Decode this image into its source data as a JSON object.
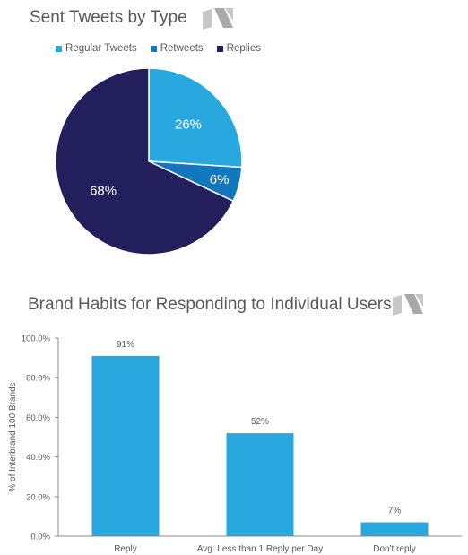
{
  "chart_data": [
    {
      "type": "pie",
      "title": "Sent Tweets by Type",
      "legend_position": "top",
      "slices": [
        {
          "name": "Regular Tweets",
          "value": 26,
          "label": "26%",
          "color": "#29a8e0"
        },
        {
          "name": "Retweets",
          "value": 6,
          "label": "6%",
          "color": "#1377be"
        },
        {
          "name": "Replies",
          "value": 68,
          "label": "68%",
          "color": "#231f5c"
        }
      ]
    },
    {
      "type": "bar",
      "title": "Brand Habits for Responding to Individual Users",
      "xlabel": "",
      "ylabel": "% of Interbrand 100 Brands",
      "ylim": [
        0,
        100
      ],
      "yticks": [
        {
          "value": 0,
          "label": "0.0%"
        },
        {
          "value": 20,
          "label": "20.0%"
        },
        {
          "value": 40,
          "label": "40.0%"
        },
        {
          "value": 60,
          "label": "60.0%"
        },
        {
          "value": 80,
          "label": "80.0%"
        },
        {
          "value": 100,
          "label": "100.0%"
        }
      ],
      "grid": false,
      "categories": [
        "Reply",
        "Avg. Less  than 1 Reply per Day",
        "Don't reply"
      ],
      "values": [
        91,
        52,
        7
      ],
      "data_labels": [
        "91%",
        "52%",
        "7%"
      ],
      "color": "#29a8e0"
    }
  ],
  "colors": {
    "text": "#595959",
    "logo": "#b8b8b8",
    "axis": "#8c8c8c"
  },
  "icons": [
    "brand-logo-icon"
  ]
}
